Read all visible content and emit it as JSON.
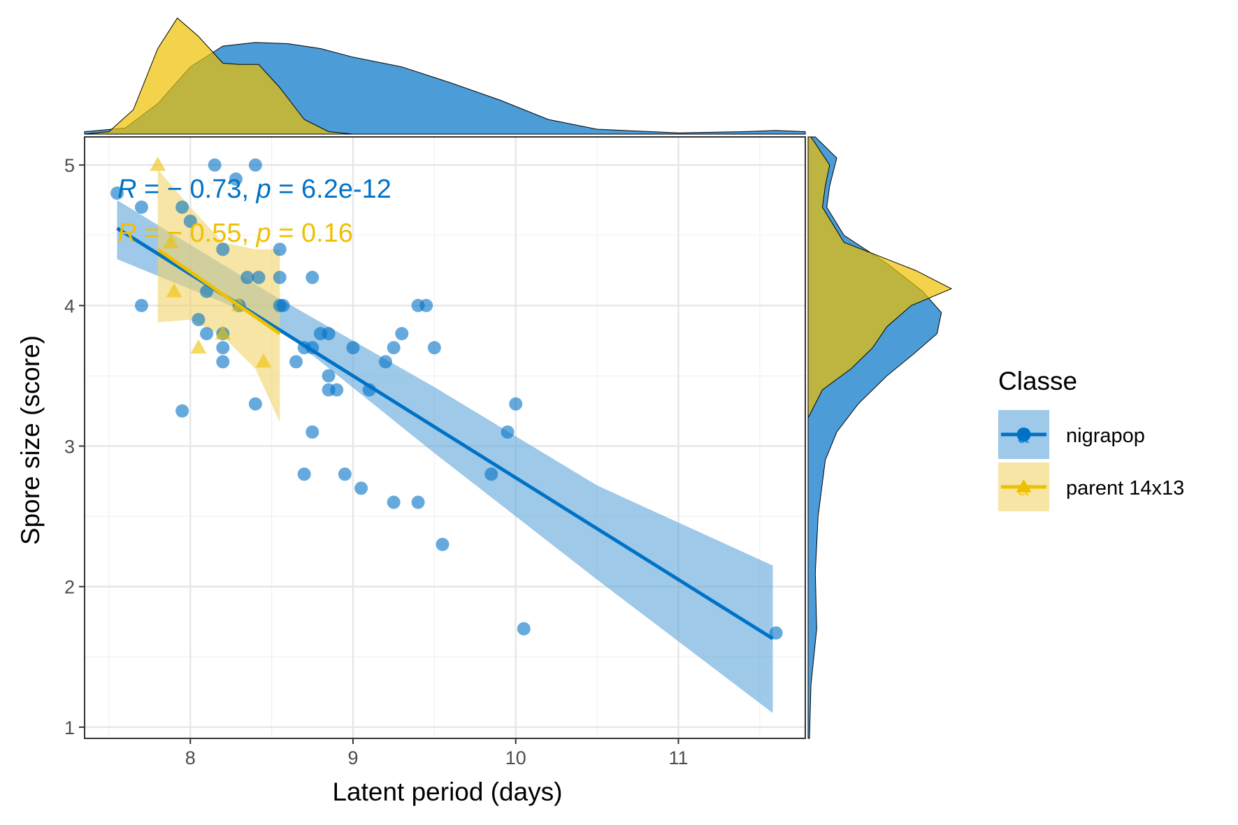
{
  "chart_data": {
    "type": "scatter",
    "xlabel": "Latent period (days)",
    "ylabel": "Spore size (score)",
    "xlim": [
      7.35,
      11.78
    ],
    "ylim": [
      0.92,
      5.2
    ],
    "x_ticks": [
      8,
      9,
      10,
      11
    ],
    "y_ticks": [
      1,
      2,
      3,
      4,
      5
    ],
    "grid": true,
    "legend": {
      "title": "Classe",
      "placement": "right",
      "entries": [
        {
          "label": "nigrapop",
          "glyph": "a"
        },
        {
          "label": "parent 14x13",
          "glyph": "a"
        }
      ]
    },
    "marginal_density": {
      "top": true,
      "right": true
    },
    "series": [
      {
        "name": "nigrapop",
        "color": "#0072C6",
        "fill_color": "#5DA5DA",
        "marker": "circle",
        "annotation": {
          "parts": [
            {
              "text": "R",
              "italic": true
            },
            {
              "text": " = − 0.73, ",
              "italic": false
            },
            {
              "text": "p",
              "italic": true
            },
            {
              "text": " = 6.2e-12",
              "italic": false
            }
          ]
        },
        "regression": {
          "x": [
            7.55,
            11.58
          ],
          "y": [
            4.55,
            1.63
          ]
        },
        "ci_band": {
          "x": [
            7.55,
            8.5,
            9.5,
            10.5,
            11.58
          ],
          "upper": [
            4.75,
            4.08,
            3.42,
            2.72,
            2.15
          ],
          "lower": [
            4.33,
            3.88,
            2.95,
            2.05,
            1.1
          ]
        },
        "density_x": [
          [
            7.35,
            0.02
          ],
          [
            7.6,
            0.05
          ],
          [
            7.8,
            0.25
          ],
          [
            8.0,
            0.55
          ],
          [
            8.2,
            0.72
          ],
          [
            8.4,
            0.75
          ],
          [
            8.6,
            0.74
          ],
          [
            8.8,
            0.7
          ],
          [
            9.0,
            0.63
          ],
          [
            9.3,
            0.55
          ],
          [
            9.6,
            0.42
          ],
          [
            9.9,
            0.28
          ],
          [
            10.2,
            0.12
          ],
          [
            10.5,
            0.04
          ],
          [
            11.0,
            0.01
          ],
          [
            11.4,
            0.02
          ],
          [
            11.6,
            0.03
          ],
          [
            11.78,
            0.02
          ]
        ],
        "density_y": [
          [
            0.92,
            0.01
          ],
          [
            1.3,
            0.02
          ],
          [
            1.7,
            0.06
          ],
          [
            2.1,
            0.05
          ],
          [
            2.5,
            0.07
          ],
          [
            2.9,
            0.12
          ],
          [
            3.1,
            0.2
          ],
          [
            3.3,
            0.35
          ],
          [
            3.5,
            0.55
          ],
          [
            3.65,
            0.73
          ],
          [
            3.8,
            0.9
          ],
          [
            3.95,
            0.93
          ],
          [
            4.1,
            0.8
          ],
          [
            4.3,
            0.55
          ],
          [
            4.5,
            0.25
          ],
          [
            4.7,
            0.13
          ],
          [
            4.85,
            0.15
          ],
          [
            5.05,
            0.2
          ],
          [
            5.2,
            0.05
          ]
        ],
        "points": [
          {
            "x": 7.55,
            "y": 4.8
          },
          {
            "x": 7.7,
            "y": 4.7
          },
          {
            "x": 7.7,
            "y": 4.0
          },
          {
            "x": 7.95,
            "y": 4.7
          },
          {
            "x": 8.0,
            "y": 4.6
          },
          {
            "x": 7.95,
            "y": 3.25
          },
          {
            "x": 8.15,
            "y": 5.0
          },
          {
            "x": 8.28,
            "y": 4.9
          },
          {
            "x": 8.4,
            "y": 5.0
          },
          {
            "x": 8.2,
            "y": 4.4
          },
          {
            "x": 8.1,
            "y": 4.1
          },
          {
            "x": 8.05,
            "y": 3.9
          },
          {
            "x": 8.1,
            "y": 3.8
          },
          {
            "x": 8.2,
            "y": 3.8
          },
          {
            "x": 8.2,
            "y": 3.7
          },
          {
            "x": 8.2,
            "y": 3.6
          },
          {
            "x": 8.3,
            "y": 4.0
          },
          {
            "x": 8.35,
            "y": 4.2
          },
          {
            "x": 8.42,
            "y": 4.2
          },
          {
            "x": 8.4,
            "y": 3.3
          },
          {
            "x": 8.55,
            "y": 4.4
          },
          {
            "x": 8.55,
            "y": 4.2
          },
          {
            "x": 8.55,
            "y": 4.0
          },
          {
            "x": 8.57,
            "y": 4.0
          },
          {
            "x": 8.65,
            "y": 3.6
          },
          {
            "x": 8.7,
            "y": 3.7
          },
          {
            "x": 8.75,
            "y": 3.7
          },
          {
            "x": 8.75,
            "y": 4.2
          },
          {
            "x": 8.75,
            "y": 3.1
          },
          {
            "x": 8.7,
            "y": 2.8
          },
          {
            "x": 8.8,
            "y": 3.8
          },
          {
            "x": 8.85,
            "y": 3.8
          },
          {
            "x": 8.85,
            "y": 3.5
          },
          {
            "x": 8.85,
            "y": 3.4
          },
          {
            "x": 8.9,
            "y": 3.4
          },
          {
            "x": 8.95,
            "y": 2.8
          },
          {
            "x": 9.0,
            "y": 3.7
          },
          {
            "x": 9.05,
            "y": 2.7
          },
          {
            "x": 9.1,
            "y": 3.4
          },
          {
            "x": 9.2,
            "y": 3.6
          },
          {
            "x": 9.25,
            "y": 3.7
          },
          {
            "x": 9.25,
            "y": 2.6
          },
          {
            "x": 9.3,
            "y": 3.8
          },
          {
            "x": 9.4,
            "y": 4.0
          },
          {
            "x": 9.45,
            "y": 4.0
          },
          {
            "x": 9.4,
            "y": 2.6
          },
          {
            "x": 9.5,
            "y": 3.7
          },
          {
            "x": 9.55,
            "y": 2.3
          },
          {
            "x": 9.85,
            "y": 2.8
          },
          {
            "x": 9.95,
            "y": 3.1
          },
          {
            "x": 10.0,
            "y": 3.3
          },
          {
            "x": 10.05,
            "y": 1.7
          },
          {
            "x": 11.6,
            "y": 1.67
          }
        ]
      },
      {
        "name": "parent 14x13",
        "color": "#EFC000",
        "fill_color": "#F2D46A",
        "marker": "triangle",
        "annotation": {
          "parts": [
            {
              "text": "R",
              "italic": true
            },
            {
              "text": " = − 0.55, ",
              "italic": false
            },
            {
              "text": "p",
              "italic": true
            },
            {
              "text": " = 0.16",
              "italic": false
            }
          ]
        },
        "regression": {
          "x": [
            7.8,
            8.55
          ],
          "y": [
            4.4,
            3.8
          ]
        },
        "ci_band": {
          "x": [
            7.8,
            8.0,
            8.2,
            8.4,
            8.55
          ],
          "upper": [
            4.97,
            4.7,
            4.45,
            4.4,
            4.4
          ],
          "lower": [
            3.88,
            3.9,
            3.78,
            3.55,
            3.17
          ]
        },
        "density_x": [
          [
            7.35,
            0.0
          ],
          [
            7.5,
            0.02
          ],
          [
            7.65,
            0.2
          ],
          [
            7.8,
            0.7
          ],
          [
            7.92,
            0.95
          ],
          [
            8.05,
            0.8
          ],
          [
            8.2,
            0.58
          ],
          [
            8.3,
            0.57
          ],
          [
            8.42,
            0.57
          ],
          [
            8.55,
            0.38
          ],
          [
            8.7,
            0.12
          ],
          [
            8.85,
            0.02
          ],
          [
            9.0,
            0.0
          ]
        ],
        "density_y": [
          [
            3.2,
            0.0
          ],
          [
            3.4,
            0.1
          ],
          [
            3.55,
            0.3
          ],
          [
            3.7,
            0.45
          ],
          [
            3.85,
            0.55
          ],
          [
            4.0,
            0.72
          ],
          [
            4.12,
            1.0
          ],
          [
            4.25,
            0.75
          ],
          [
            4.45,
            0.25
          ],
          [
            4.7,
            0.1
          ],
          [
            4.85,
            0.12
          ],
          [
            5.0,
            0.15
          ],
          [
            5.2,
            0.02
          ]
        ],
        "points": [
          {
            "x": 7.8,
            "y": 5.0
          },
          {
            "x": 7.88,
            "y": 4.45
          },
          {
            "x": 7.9,
            "y": 4.1
          },
          {
            "x": 8.05,
            "y": 3.7
          },
          {
            "x": 8.2,
            "y": 3.8
          },
          {
            "x": 8.3,
            "y": 4.0
          },
          {
            "x": 8.45,
            "y": 3.6
          }
        ]
      }
    ]
  }
}
